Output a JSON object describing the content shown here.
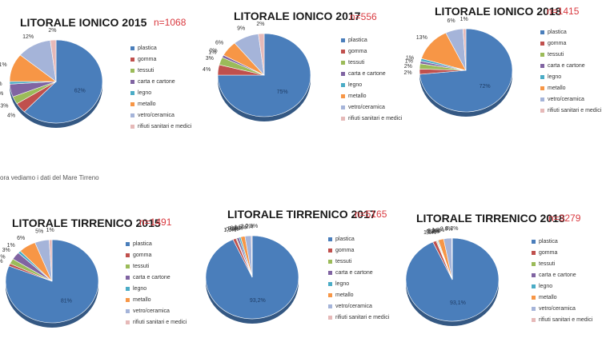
{
  "categories": [
    "plastica",
    "gomma",
    "tessuti",
    "carta e cartone",
    "legno",
    "metallo",
    "vetro/ceramica",
    "rifiuti sanitari e medici"
  ],
  "colors": [
    "#4a7ebb",
    "#c0504d",
    "#9bbb59",
    "#8064a2",
    "#4bacc6",
    "#f79646",
    "#a5b4d9",
    "#e6b9b8"
  ],
  "separator_text": "ora vediamo i dati del Mare Tirreno",
  "panels": [
    {
      "title": "LITORALE IONICO 2015",
      "n": "n=1068"
    },
    {
      "title": "LITORALE IONICO 2017",
      "n": "n=556"
    },
    {
      "title": "LITORALE IONICO 2018",
      "n": "n=1415"
    },
    {
      "title": "LITORALE TIRRENICO 2015",
      "n": "n=1491"
    },
    {
      "title": "LITORALE TIRRENICO 2017",
      "n": "n=5165"
    },
    {
      "title": "LITORALE TIRRENICO 2018",
      "n": "n=3279"
    }
  ],
  "chart_data": [
    {
      "type": "pie",
      "title": "LITORALE IONICO 2015",
      "n": "n=1068",
      "labels": [
        "plastica",
        "gomma",
        "tessuti",
        "carta e cartone",
        "legno",
        "metallo",
        "vetro/ceramica",
        "rifiuti sanitari e medici"
      ],
      "values": [
        62,
        4,
        3,
        5,
        1,
        11,
        12,
        2
      ],
      "data_labels": [
        "62%",
        "4%",
        "3%",
        "5%",
        "1%",
        "11%",
        "12%",
        "2%"
      ]
    },
    {
      "type": "pie",
      "title": "LITORALE IONICO 2017",
      "n": "n=556",
      "labels": [
        "plastica",
        "gomma",
        "tessuti",
        "carta e cartone",
        "legno",
        "metallo",
        "vetro/ceramica",
        "rifiuti sanitari e medici"
      ],
      "values": [
        75,
        4,
        3,
        1,
        0,
        6,
        9,
        2
      ],
      "data_labels": [
        "75%",
        "4%",
        "3%",
        "1%",
        "0%",
        "6%",
        "9%",
        "2%"
      ]
    },
    {
      "type": "pie",
      "title": "LITORALE IONICO 2018",
      "n": "n=1415",
      "labels": [
        "plastica",
        "gomma",
        "tessuti",
        "carta e cartone",
        "legno",
        "metallo",
        "vetro/ceramica",
        "rifiuti sanitari e medici"
      ],
      "values": [
        72,
        2,
        2,
        1,
        1,
        13,
        6,
        1
      ],
      "data_labels": [
        "72%",
        "2%",
        "2%",
        "1%",
        "1%",
        "13%",
        "6%",
        "1%"
      ]
    },
    {
      "type": "pie",
      "title": "LITORALE TIRRENICO 2015",
      "n": "n=1491",
      "labels": [
        "plastica",
        "gomma",
        "tessuti",
        "carta e cartone",
        "legno",
        "metallo",
        "vetro/ceramica",
        "rifiuti sanitari e medici"
      ],
      "values": [
        81,
        1,
        2,
        3,
        1,
        6,
        5,
        1
      ],
      "data_labels": [
        "81%",
        "1%",
        "2%",
        "3%",
        "1%",
        "6%",
        "5%",
        "1%"
      ]
    },
    {
      "type": "pie",
      "title": "LITORALE TIRRENICO 2017",
      "n": "n=5165",
      "labels": [
        "plastica",
        "gomma",
        "tessuti",
        "carta e cartone",
        "legno",
        "metallo",
        "vetro/ceramica",
        "rifiuti sanitari e medici"
      ],
      "values": [
        93.2,
        1.1,
        0.3,
        0.8,
        0.6,
        1.5,
        2.2,
        0.3
      ],
      "data_labels": [
        "93,2%",
        "1,1%",
        "0,3%",
        "0,8%",
        "0,6%",
        "1,5%",
        "2,2%",
        "0,3%"
      ]
    },
    {
      "type": "pie",
      "title": "LITORALE TIRRENICO 2018",
      "n": "n=3279",
      "labels": [
        "plastica",
        "gomma",
        "tessuti",
        "carta e cartone",
        "legno",
        "metallo",
        "vetro/ceramica",
        "rifiuti sanitari e medici"
      ],
      "values": [
        93.1,
        1.2,
        0.3,
        0.2,
        0.3,
        1.9,
        2.8,
        0.2
      ],
      "data_labels": [
        "93,1%",
        "1,2%",
        "0,3%",
        "0,2%",
        "0,3%",
        "1,9%",
        "2,8%",
        "0,2%"
      ]
    }
  ]
}
